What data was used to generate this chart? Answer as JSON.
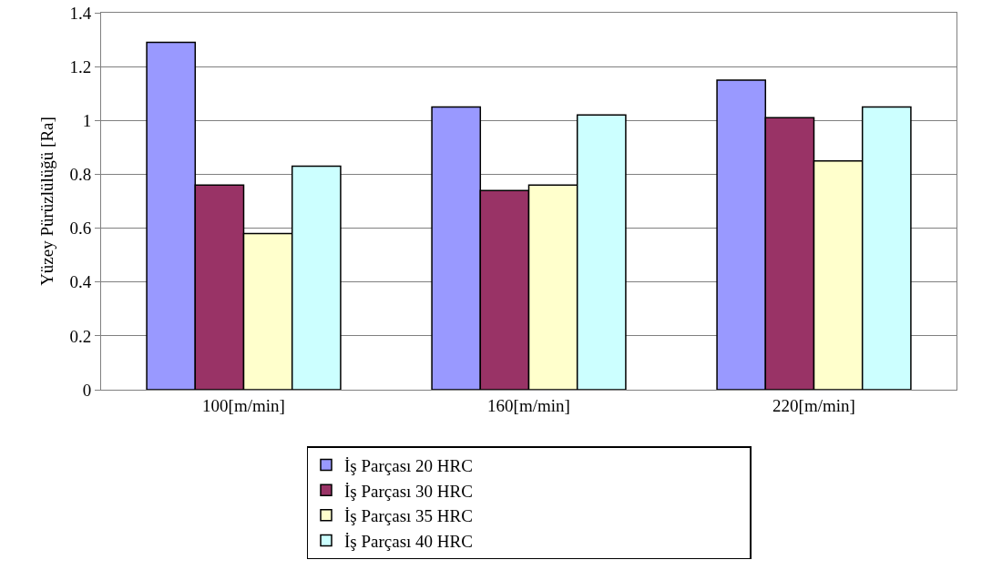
{
  "chart_data": {
    "type": "bar",
    "ylabel": "Yüzey Pürüzlülüğü [Ra]",
    "categories": [
      "100[m/min]",
      "160[m/min]",
      "220[m/min]"
    ],
    "series": [
      {
        "name": "İş Parçası 20 HRC",
        "color": "#9999ff",
        "values": [
          1.29,
          1.05,
          1.15
        ]
      },
      {
        "name": "İş Parçası 30 HRC",
        "color": "#993366",
        "values": [
          0.76,
          0.74,
          1.01
        ]
      },
      {
        "name": "İş Parçası 35 HRC",
        "color": "#ffffcc",
        "values": [
          0.58,
          0.76,
          0.85
        ]
      },
      {
        "name": "İş Parçası 40 HRC",
        "color": "#ccffff",
        "values": [
          0.83,
          1.02,
          1.05
        ]
      }
    ],
    "ylim": [
      0,
      1.4
    ],
    "yticks": [
      0,
      0.2,
      0.4,
      0.6,
      0.8,
      1,
      1.2,
      1.4
    ],
    "grid": "y",
    "legend": "bottom"
  }
}
